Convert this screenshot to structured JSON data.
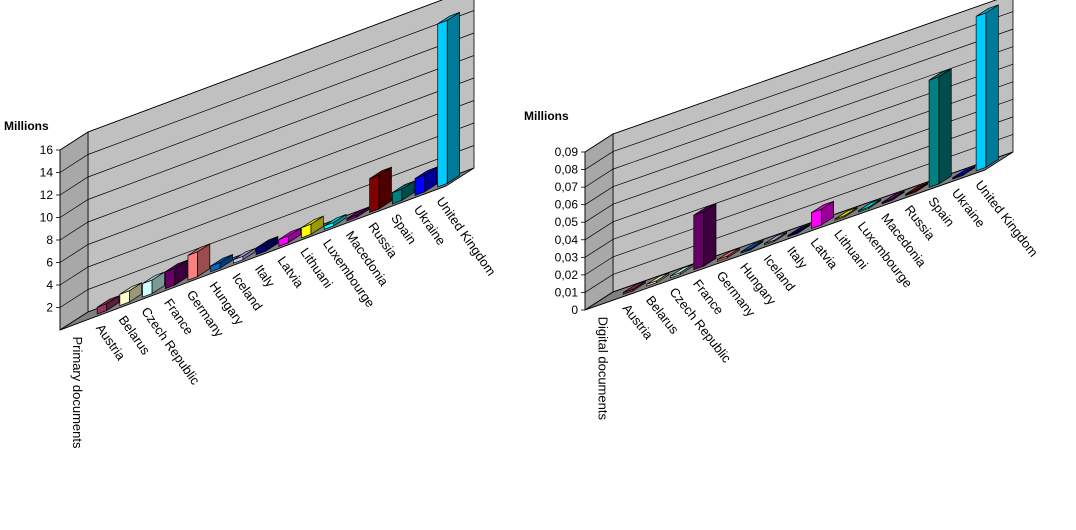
{
  "chart_data": [
    {
      "type": "bar",
      "title": "",
      "ylabel": "Millions",
      "xlabel": "",
      "series_label": "Primary documents",
      "categories": [
        "Austria",
        "Belarus",
        "Czech Republic",
        "France",
        "Germany",
        "Hungary",
        "Iceland",
        "Italy",
        "Latvia",
        "Lithuani",
        "Luxembourge",
        "Macedonia",
        "Russia",
        "Spain",
        "Ukraine",
        "United Kingdom"
      ],
      "values": [
        0.6,
        1.0,
        1.2,
        1.5,
        2.2,
        0.5,
        0.3,
        0.6,
        0.6,
        0.9,
        0.3,
        0.2,
        3.0,
        1.0,
        1.5,
        14.5
      ],
      "colors": [
        "#993366",
        "#FFFFCC",
        "#CCFFFF",
        "#660066",
        "#FF8080",
        "#0066CC",
        "#CCCCFF",
        "#000080",
        "#FF00FF",
        "#FFFF00",
        "#00FFFF",
        "#800080",
        "#800000",
        "#008080",
        "#0000FF",
        "#00CCFF"
      ],
      "yticks": [
        "2",
        "4",
        "6",
        "8",
        "10",
        "12",
        "14",
        "16"
      ],
      "ylim": [
        0,
        16
      ],
      "grid": true
    },
    {
      "type": "bar",
      "title": "",
      "ylabel": "Millions",
      "xlabel": "",
      "series_label": "Digital documents",
      "categories": [
        "Austria",
        "Belarus",
        "Czech Republic",
        "France",
        "Germany",
        "Hungary",
        "Iceland",
        "Italy",
        "Latvia",
        "Lithuani",
        "Luxembourge",
        "Macedonia",
        "Russia",
        "Spain",
        "Ukraine",
        "United Kingdom"
      ],
      "values": [
        0.001,
        0.001,
        0.001,
        0.031,
        0.001,
        0.0005,
        0.0,
        0.0,
        0.009,
        0.0,
        0.0,
        0.0,
        0.0,
        0.061,
        0.0,
        0.088
      ],
      "colors": [
        "#993366",
        "#FFFFCC",
        "#CCFFFF",
        "#660066",
        "#FF8080",
        "#0066CC",
        "#CCCCFF",
        "#000080",
        "#FF00FF",
        "#FFFF00",
        "#00FFFF",
        "#800080",
        "#800000",
        "#008080",
        "#0000FF",
        "#00CCFF"
      ],
      "yticks": [
        "0",
        "0,01",
        "0,02",
        "0,03",
        "0,04",
        "0,05",
        "0,06",
        "0,07",
        "0,08",
        "0,09"
      ],
      "ylim": [
        0,
        0.09
      ],
      "grid": true
    }
  ]
}
